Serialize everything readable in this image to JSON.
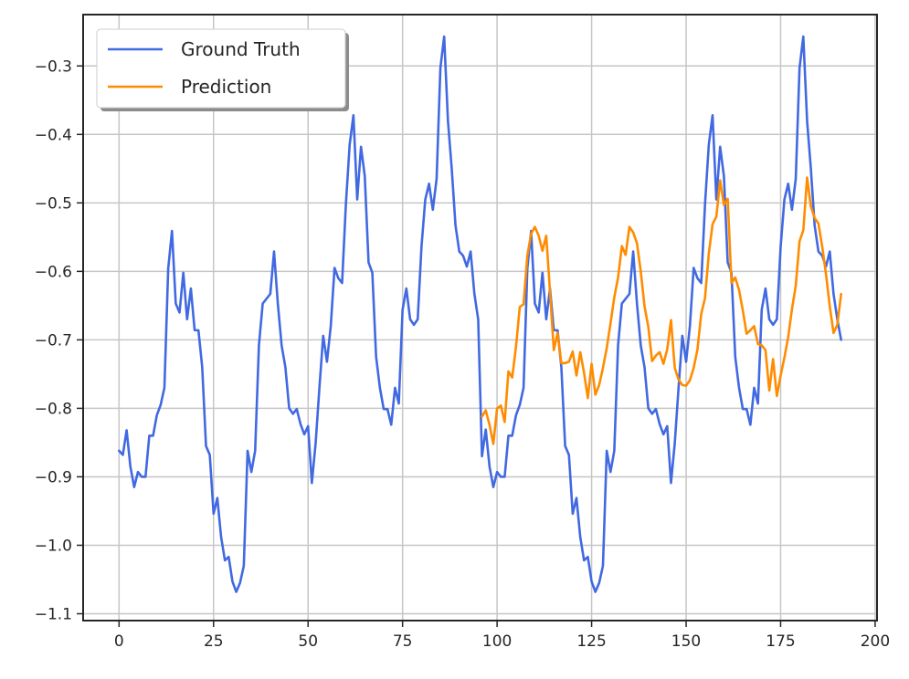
{
  "chart_data": {
    "type": "line",
    "title": "",
    "xlabel": "",
    "ylabel": "",
    "xlim": [
      -9.5,
      200.5
    ],
    "ylim": [
      -1.11,
      -0.225
    ],
    "xticks": [
      0,
      25,
      50,
      75,
      100,
      125,
      150,
      175,
      200
    ],
    "yticks": [
      -1.1,
      -1.0,
      -0.9,
      -0.8,
      -0.7,
      -0.6,
      -0.5,
      -0.4,
      -0.3
    ],
    "xtick_labels": [
      "0",
      "25",
      "50",
      "75",
      "100",
      "125",
      "150",
      "175",
      "200"
    ],
    "ytick_labels": [
      "−1.1",
      "−1.0",
      "−0.9",
      "−0.8",
      "−0.7",
      "−0.6",
      "−0.5",
      "−0.4",
      "−0.3"
    ],
    "grid": true,
    "legend_position": "top-left",
    "series": [
      {
        "name": "Ground Truth",
        "color": "#4169e1",
        "x_start": 0,
        "values": [
          -0.862,
          -0.868,
          -0.832,
          -0.885,
          -0.915,
          -0.893,
          -0.9,
          -0.9,
          -0.84,
          -0.84,
          -0.81,
          -0.795,
          -0.77,
          -0.596,
          -0.541,
          -0.647,
          -0.66,
          -0.602,
          -0.67,
          -0.625,
          -0.686,
          -0.686,
          -0.74,
          -0.855,
          -0.868,
          -0.954,
          -0.931,
          -0.988,
          -1.022,
          -1.017,
          -1.053,
          -1.068,
          -1.055,
          -1.03,
          -0.862,
          -0.893,
          -0.862,
          -0.708,
          -0.647,
          -0.64,
          -0.633,
          -0.571,
          -0.647,
          -0.708,
          -0.74,
          -0.8,
          -0.808,
          -0.801,
          -0.823,
          -0.838,
          -0.826,
          -0.909,
          -0.851,
          -0.77,
          -0.694,
          -0.732,
          -0.68,
          -0.595,
          -0.61,
          -0.617,
          -0.502,
          -0.415,
          -0.372,
          -0.495,
          -0.418,
          -0.461,
          -0.587,
          -0.602,
          -0.725,
          -0.77,
          -0.801,
          -0.801,
          -0.824,
          -0.77,
          -0.793,
          -0.656,
          -0.625,
          -0.67,
          -0.678,
          -0.67,
          -0.564,
          -0.495,
          -0.472,
          -0.51,
          -0.465,
          -0.303,
          -0.257,
          -0.38,
          -0.45,
          -0.533,
          -0.571,
          -0.577,
          -0.593,
          -0.571,
          -0.633,
          -0.67,
          -0.87,
          -0.831,
          -0.885,
          -0.915,
          -0.893,
          -0.9,
          -0.9,
          -0.84,
          -0.84,
          -0.81,
          -0.795,
          -0.77,
          -0.596,
          -0.541,
          -0.647,
          -0.66,
          -0.602,
          -0.67,
          -0.625,
          -0.686,
          -0.686,
          -0.74,
          -0.855,
          -0.868,
          -0.954,
          -0.931,
          -0.988,
          -1.022,
          -1.017,
          -1.053,
          -1.068,
          -1.055,
          -1.03,
          -0.862,
          -0.893,
          -0.862,
          -0.708,
          -0.647,
          -0.64,
          -0.633,
          -0.571,
          -0.647,
          -0.708,
          -0.74,
          -0.8,
          -0.808,
          -0.801,
          -0.823,
          -0.838,
          -0.826,
          -0.909,
          -0.851,
          -0.77,
          -0.694,
          -0.732,
          -0.68,
          -0.595,
          -0.61,
          -0.617,
          -0.502,
          -0.415,
          -0.372,
          -0.495,
          -0.418,
          -0.461,
          -0.587,
          -0.602,
          -0.725,
          -0.77,
          -0.801,
          -0.801,
          -0.824,
          -0.77,
          -0.793,
          -0.656,
          -0.625,
          -0.67,
          -0.678,
          -0.67,
          -0.564,
          -0.495,
          -0.472,
          -0.51,
          -0.465,
          -0.303,
          -0.257,
          -0.38,
          -0.45,
          -0.533,
          -0.571,
          -0.577,
          -0.593,
          -0.571,
          -0.633,
          -0.67,
          -0.7
        ]
      },
      {
        "name": "Prediction",
        "color": "#ff8c00",
        "x_start": 96,
        "values": [
          -0.812,
          -0.803,
          -0.824,
          -0.852,
          -0.8,
          -0.796,
          -0.82,
          -0.746,
          -0.755,
          -0.71,
          -0.652,
          -0.648,
          -0.577,
          -0.545,
          -0.535,
          -0.548,
          -0.57,
          -0.548,
          -0.63,
          -0.715,
          -0.69,
          -0.734,
          -0.734,
          -0.732,
          -0.717,
          -0.752,
          -0.718,
          -0.748,
          -0.785,
          -0.735,
          -0.78,
          -0.766,
          -0.741,
          -0.712,
          -0.676,
          -0.638,
          -0.609,
          -0.563,
          -0.576,
          -0.535,
          -0.543,
          -0.559,
          -0.6,
          -0.651,
          -0.681,
          -0.731,
          -0.723,
          -0.718,
          -0.735,
          -0.714,
          -0.671,
          -0.741,
          -0.758,
          -0.766,
          -0.767,
          -0.759,
          -0.741,
          -0.714,
          -0.662,
          -0.639,
          -0.574,
          -0.531,
          -0.52,
          -0.467,
          -0.503,
          -0.494,
          -0.617,
          -0.609,
          -0.627,
          -0.657,
          -0.691,
          -0.686,
          -0.68,
          -0.706,
          -0.708,
          -0.715,
          -0.774,
          -0.728,
          -0.782,
          -0.752,
          -0.726,
          -0.696,
          -0.655,
          -0.621,
          -0.556,
          -0.54,
          -0.463,
          -0.505,
          -0.522,
          -0.53,
          -0.564,
          -0.604,
          -0.651,
          -0.69,
          -0.678,
          -0.633
        ]
      }
    ]
  }
}
